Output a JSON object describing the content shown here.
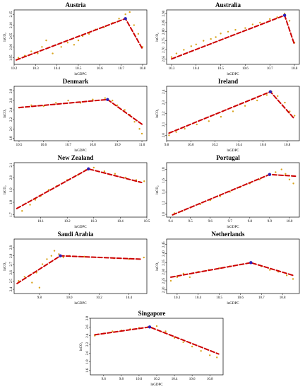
{
  "colors": {
    "points": "#d9a520",
    "fit": "#cc0000",
    "break": "#2d1fb5"
  },
  "chart_data": [
    {
      "type": "scatter",
      "title": "Austria",
      "xlabel": "lnGDPC",
      "ylabel": "lnCO₂",
      "xlim": [
        10.2,
        10.82
      ],
      "ylim": [
        1.92,
        2.17
      ],
      "xticks": [
        10.2,
        10.3,
        10.4,
        10.5,
        10.6,
        10.7,
        10.8
      ],
      "xtick_labels": [
        "10.2",
        "10.3",
        "10.4",
        "10.5",
        "10.6",
        "10.7",
        "10.8"
      ],
      "yticks": [
        1.95,
        2.0,
        2.05,
        2.1,
        2.15
      ],
      "ytick_labels": [
        "1.95",
        "2.00",
        "2.05",
        "2.10",
        "2.15"
      ],
      "points": [
        [
          10.22,
          1.95
        ],
        [
          10.25,
          1.96
        ],
        [
          10.28,
          1.98
        ],
        [
          10.31,
          1.97
        ],
        [
          10.33,
          2.0
        ],
        [
          10.35,
          2.03
        ],
        [
          10.38,
          1.97
        ],
        [
          10.42,
          2.0
        ],
        [
          10.45,
          2.02
        ],
        [
          10.48,
          2.01
        ],
        [
          10.5,
          2.03
        ],
        [
          10.52,
          2.05
        ],
        [
          10.55,
          2.06
        ],
        [
          10.58,
          2.08
        ],
        [
          10.62,
          2.09
        ],
        [
          10.66,
          2.11
        ],
        [
          10.69,
          2.13
        ],
        [
          10.72,
          2.15
        ],
        [
          10.74,
          2.16
        ],
        [
          10.76,
          2.1
        ],
        [
          10.78,
          2.06
        ],
        [
          10.8,
          2.0
        ]
      ],
      "fit": [
        [
          10.21,
          1.94
        ],
        [
          10.72,
          2.13
        ],
        [
          10.8,
          1.99
        ]
      ],
      "break": [
        10.72,
        2.13
      ]
    },
    {
      "type": "scatter",
      "title": "Australia",
      "xlabel": "lnGDPC",
      "ylabel": "lnCO₂",
      "xlim": [
        10.28,
        10.82
      ],
      "ylim": [
        2.62,
        2.92
      ],
      "xticks": [
        10.3,
        10.4,
        10.5,
        10.6,
        10.7,
        10.8
      ],
      "xtick_labels": [
        "10.3",
        "10.4",
        "10.5",
        "10.6",
        "10.7",
        "10.8"
      ],
      "yticks": [
        2.65,
        2.7,
        2.75,
        2.8,
        2.85,
        2.9
      ],
      "ytick_labels": [
        "2.65",
        "2.70",
        "2.75",
        "2.80",
        "2.85",
        "2.90"
      ],
      "points": [
        [
          10.3,
          2.66
        ],
        [
          10.32,
          2.68
        ],
        [
          10.35,
          2.7
        ],
        [
          10.38,
          2.72
        ],
        [
          10.4,
          2.73
        ],
        [
          10.43,
          2.75
        ],
        [
          10.46,
          2.76
        ],
        [
          10.48,
          2.77
        ],
        [
          10.5,
          2.79
        ],
        [
          10.53,
          2.8
        ],
        [
          10.56,
          2.81
        ],
        [
          10.6,
          2.82
        ],
        [
          10.63,
          2.84
        ],
        [
          10.66,
          2.85
        ],
        [
          10.7,
          2.87
        ],
        [
          10.73,
          2.88
        ],
        [
          10.76,
          2.9
        ],
        [
          10.78,
          2.86
        ],
        [
          10.8,
          2.74
        ]
      ],
      "fit": [
        [
          10.3,
          2.65
        ],
        [
          10.76,
          2.89
        ],
        [
          10.8,
          2.73
        ]
      ],
      "break": [
        10.76,
        2.89
      ]
    },
    {
      "type": "scatter",
      "title": "Denmark",
      "xlabel": "lnGDPC",
      "ylabel": "lnCO₂",
      "xlim": [
        10.48,
        11.02
      ],
      "ylim": [
        1.75,
        2.9
      ],
      "xticks": [
        10.5,
        10.6,
        10.7,
        10.8,
        10.9,
        11.0
      ],
      "xtick_labels": [
        "10.5",
        "10.6",
        "10.7",
        "10.8",
        "10.9",
        "11.0"
      ],
      "yticks": [
        1.8,
        2.0,
        2.2,
        2.4,
        2.6,
        2.8
      ],
      "ytick_labels": [
        "1.8",
        "2.0",
        "2.2",
        "2.4",
        "2.6",
        "2.8"
      ],
      "points": [
        [
          10.5,
          2.45
        ],
        [
          10.55,
          2.5
        ],
        [
          10.6,
          2.48
        ],
        [
          10.65,
          2.55
        ],
        [
          10.7,
          2.6
        ],
        [
          10.75,
          2.55
        ],
        [
          10.8,
          2.62
        ],
        [
          10.85,
          2.65
        ],
        [
          10.88,
          2.6
        ],
        [
          10.9,
          2.5
        ],
        [
          10.93,
          2.4
        ],
        [
          10.95,
          2.3
        ],
        [
          10.97,
          2.15
        ],
        [
          10.99,
          2.0
        ],
        [
          11.0,
          1.9
        ]
      ],
      "fit": [
        [
          10.5,
          2.45
        ],
        [
          10.86,
          2.62
        ],
        [
          11.0,
          2.1
        ]
      ],
      "break": [
        10.86,
        2.62
      ]
    },
    {
      "type": "scatter",
      "title": "Ireland",
      "xlabel": "lnGDPC",
      "ylabel": "lnCO₂",
      "xlim": [
        9.8,
        10.9
      ],
      "ylim": [
        1.95,
        2.45
      ],
      "xticks": [
        9.8,
        10.0,
        10.2,
        10.4,
        10.6,
        10.8
      ],
      "xtick_labels": [
        "9.8",
        "10.0",
        "10.2",
        "10.4",
        "10.6",
        "10.8"
      ],
      "yticks": [
        2.0,
        2.1,
        2.2,
        2.3,
        2.4
      ],
      "ytick_labels": [
        "2.0",
        "2.1",
        "2.2",
        "2.3",
        "2.4"
      ],
      "points": [
        [
          9.82,
          2.0
        ],
        [
          9.88,
          2.03
        ],
        [
          9.95,
          2.06
        ],
        [
          10.05,
          2.1
        ],
        [
          10.15,
          2.13
        ],
        [
          10.25,
          2.17
        ],
        [
          10.35,
          2.22
        ],
        [
          10.45,
          2.27
        ],
        [
          10.55,
          2.32
        ],
        [
          10.63,
          2.37
        ],
        [
          10.67,
          2.4
        ],
        [
          10.72,
          2.36
        ],
        [
          10.78,
          2.3
        ],
        [
          10.82,
          2.22
        ],
        [
          10.86,
          2.18
        ]
      ],
      "fit": [
        [
          9.82,
          2.02
        ],
        [
          10.66,
          2.4
        ],
        [
          10.86,
          2.15
        ]
      ],
      "break": [
        10.66,
        2.4
      ]
    },
    {
      "type": "scatter",
      "title": "New Zealand",
      "xlabel": "lnGDPC",
      "ylabel": "lnCO₂",
      "xlim": [
        10.0,
        10.5
      ],
      "ylim": [
        1.68,
        2.12
      ],
      "xticks": [
        10.1,
        10.2,
        10.3,
        10.4,
        10.5
      ],
      "xtick_labels": [
        "10.1",
        "10.2",
        "10.3",
        "10.4",
        "10.5"
      ],
      "yticks": [
        1.7,
        1.8,
        1.9,
        2.0,
        2.1
      ],
      "ytick_labels": [
        "1.7",
        "1.8",
        "1.9",
        "2.0",
        "2.1"
      ],
      "points": [
        [
          10.03,
          1.73
        ],
        [
          10.06,
          1.78
        ],
        [
          10.08,
          1.82
        ],
        [
          10.1,
          1.85
        ],
        [
          10.13,
          1.9
        ],
        [
          10.16,
          1.93
        ],
        [
          10.2,
          1.98
        ],
        [
          10.24,
          2.02
        ],
        [
          10.27,
          2.06
        ],
        [
          10.3,
          2.08
        ],
        [
          10.34,
          2.05
        ],
        [
          10.38,
          2.03
        ],
        [
          10.42,
          2.0
        ],
        [
          10.46,
          1.98
        ],
        [
          10.49,
          1.97
        ]
      ],
      "fit": [
        [
          10.01,
          1.75
        ],
        [
          10.28,
          2.07
        ],
        [
          10.48,
          1.96
        ]
      ],
      "break": [
        10.28,
        2.07
      ]
    },
    {
      "type": "scatter",
      "title": "Portugal",
      "xlabel": "lnGDPC",
      "ylabel": "lnCO₂",
      "xlim": [
        9.38,
        10.05
      ],
      "ylim": [
        0.95,
        1.92
      ],
      "xticks": [
        9.4,
        9.5,
        9.6,
        9.7,
        9.8,
        9.9,
        10.0
      ],
      "xtick_labels": [
        "9.4",
        "9.5",
        "9.6",
        "9.7",
        "9.8",
        "9.9",
        "10.0"
      ],
      "yticks": [
        1.0,
        1.2,
        1.4,
        1.6,
        1.8
      ],
      "ytick_labels": [
        "1.0",
        "1.2",
        "1.4",
        "1.6",
        "1.8"
      ],
      "points": [
        [
          9.42,
          1.02
        ],
        [
          9.46,
          1.06
        ],
        [
          9.5,
          1.12
        ],
        [
          9.55,
          1.18
        ],
        [
          9.6,
          1.25
        ],
        [
          9.65,
          1.32
        ],
        [
          9.7,
          1.4
        ],
        [
          9.75,
          1.48
        ],
        [
          9.8,
          1.55
        ],
        [
          9.85,
          1.62
        ],
        [
          9.9,
          1.7
        ],
        [
          9.93,
          1.75
        ],
        [
          9.96,
          1.8
        ],
        [
          9.98,
          1.72
        ],
        [
          10.0,
          1.62
        ],
        [
          10.02,
          1.55
        ]
      ],
      "fit": [
        [
          9.41,
          0.99
        ],
        [
          9.9,
          1.71
        ],
        [
          10.03,
          1.68
        ]
      ],
      "break": [
        9.9,
        1.71
      ]
    },
    {
      "type": "scatter",
      "title": "Saudi Arabia",
      "xlabel": "lnGDPC",
      "ylabel": "lnCO₂",
      "xlim": [
        9.63,
        10.52
      ],
      "ylim": [
        2.35,
        3.0
      ],
      "xticks": [
        9.8,
        10.0,
        10.2,
        10.4
      ],
      "xtick_labels": [
        "9.8",
        "10.0",
        "10.2",
        "10.4"
      ],
      "yticks": [
        2.4,
        2.5,
        2.6,
        2.7,
        2.8,
        2.9
      ],
      "ytick_labels": [
        "2.4",
        "2.5",
        "2.6",
        "2.7",
        "2.8",
        "2.9"
      ],
      "points": [
        [
          9.66,
          2.5
        ],
        [
          9.7,
          2.55
        ],
        [
          9.75,
          2.48
        ],
        [
          9.78,
          2.6
        ],
        [
          9.8,
          2.42
        ],
        [
          9.82,
          2.7
        ],
        [
          9.85,
          2.76
        ],
        [
          9.88,
          2.8
        ],
        [
          9.9,
          2.86
        ],
        [
          9.93,
          2.82
        ],
        [
          9.96,
          2.78
        ],
        [
          10.0,
          2.8
        ],
        [
          10.1,
          2.79
        ],
        [
          10.2,
          2.78
        ],
        [
          10.3,
          2.77
        ],
        [
          10.4,
          2.76
        ],
        [
          10.5,
          2.78
        ]
      ],
      "fit": [
        [
          9.65,
          2.47
        ],
        [
          9.94,
          2.8
        ],
        [
          10.48,
          2.76
        ]
      ],
      "break": [
        9.94,
        2.8
      ]
    },
    {
      "type": "scatter",
      "title": "Netherlands",
      "xlabel": "lnGDPC",
      "ylabel": "lnCO₂",
      "xlim": [
        10.25,
        10.88
      ],
      "ylim": [
        2.18,
        2.48
      ],
      "xticks": [
        10.3,
        10.4,
        10.5,
        10.6,
        10.7,
        10.8
      ],
      "xtick_labels": [
        "10.3",
        "10.4",
        "10.5",
        "10.6",
        "10.7",
        "10.8"
      ],
      "yticks": [
        2.2,
        2.25,
        2.3,
        2.35,
        2.4,
        2.45
      ],
      "ytick_labels": [
        "2.20",
        "2.25",
        "2.30",
        "2.35",
        "2.40",
        "2.45"
      ],
      "points": [
        [
          10.27,
          2.25
        ],
        [
          10.3,
          2.27
        ],
        [
          10.33,
          2.29
        ],
        [
          10.36,
          2.27
        ],
        [
          10.4,
          2.3
        ],
        [
          10.45,
          2.31
        ],
        [
          10.5,
          2.32
        ],
        [
          10.55,
          2.33
        ],
        [
          10.6,
          2.34
        ],
        [
          10.65,
          2.35
        ],
        [
          10.7,
          2.33
        ],
        [
          10.74,
          2.31
        ],
        [
          10.78,
          2.3
        ],
        [
          10.82,
          2.28
        ],
        [
          10.85,
          2.26
        ]
      ],
      "fit": [
        [
          10.27,
          2.27
        ],
        [
          10.65,
          2.35
        ],
        [
          10.85,
          2.28
        ]
      ],
      "break": [
        10.65,
        2.35
      ]
    },
    {
      "type": "scatter",
      "title": "Singapore",
      "xlabel": "lnGDPC",
      "ylabel": "lnCO₂",
      "xlim": [
        9.45,
        10.95
      ],
      "ylim": [
        1.5,
        2.8
      ],
      "xticks": [
        9.6,
        9.8,
        10.0,
        10.2,
        10.4,
        10.6,
        10.8
      ],
      "xtick_labels": [
        "9.6",
        "9.8",
        "10.0",
        "10.2",
        "10.4",
        "10.6",
        "10.8"
      ],
      "yticks": [
        1.6,
        1.8,
        2.0,
        2.2,
        2.4,
        2.6,
        2.8
      ],
      "ytick_labels": [
        "1.6",
        "1.8",
        "2.0",
        "2.2",
        "2.4",
        "2.6",
        "2.8"
      ],
      "points": [
        [
          9.5,
          2.4
        ],
        [
          9.6,
          2.45
        ],
        [
          9.7,
          2.5
        ],
        [
          9.8,
          2.52
        ],
        [
          9.9,
          2.55
        ],
        [
          10.0,
          2.58
        ],
        [
          10.1,
          2.6
        ],
        [
          10.2,
          2.62
        ],
        [
          10.3,
          2.5
        ],
        [
          10.4,
          2.35
        ],
        [
          10.5,
          2.25
        ],
        [
          10.6,
          2.15
        ],
        [
          10.7,
          2.05
        ],
        [
          10.8,
          1.95
        ],
        [
          10.88,
          1.9
        ]
      ],
      "fit": [
        [
          9.5,
          2.42
        ],
        [
          10.12,
          2.6
        ],
        [
          10.9,
          1.98
        ]
      ],
      "break": [
        10.12,
        2.6
      ]
    }
  ]
}
